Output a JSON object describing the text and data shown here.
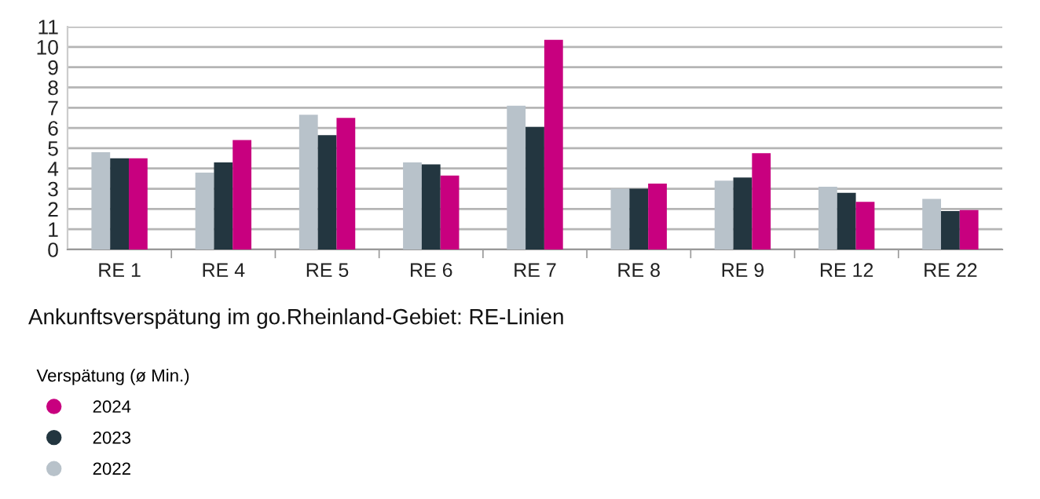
{
  "chart_data": {
    "type": "bar",
    "title": "Ankunftsverspätung im go.Rheinland-Gebiet: RE-Linien",
    "legend_title": "Verspätung (ø Min.)",
    "categories": [
      "RE 1",
      "RE 4",
      "RE 5",
      "RE 6",
      "RE 7",
      "RE 8",
      "RE 9",
      "RE 12",
      "RE 22"
    ],
    "series": [
      {
        "name": "2022",
        "color": "#b8c2ca",
        "values": [
          4.8,
          3.8,
          6.65,
          4.3,
          7.1,
          3.0,
          3.4,
          3.1,
          2.5
        ]
      },
      {
        "name": "2023",
        "color": "#233640",
        "values": [
          4.5,
          4.3,
          5.65,
          4.2,
          6.05,
          3.0,
          3.55,
          2.8,
          1.9
        ]
      },
      {
        "name": "2024",
        "color": "#c8007f",
        "values": [
          4.5,
          5.4,
          6.5,
          3.65,
          10.35,
          3.25,
          4.75,
          2.35,
          1.95
        ]
      }
    ],
    "ylim": [
      0,
      11
    ],
    "yticks": [
      0,
      1,
      2,
      3,
      4,
      5,
      6,
      7,
      8,
      9,
      10,
      11
    ],
    "grid": "y",
    "legend": "bottom left"
  }
}
